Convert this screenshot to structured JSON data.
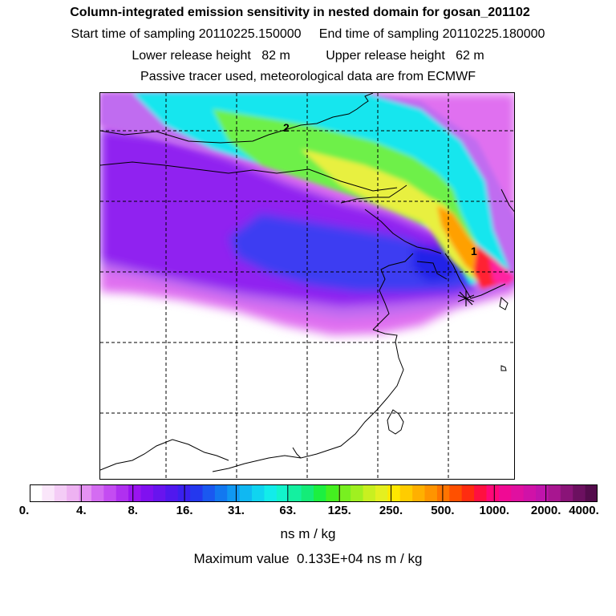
{
  "header": {
    "title": "Column-integrated emission sensitivity in nested domain for gosan_201102",
    "sampling_line": "Start time of sampling 20110225.150000     End time of sampling 20110225.180000",
    "release_line": "Lower release height   82 m          Upper release height   62 m",
    "tracer_line": "Passive tracer used, meteorological data are from ECMWF"
  },
  "map": {
    "contour_labels": [
      "2",
      "1"
    ],
    "gridlines": "dashed",
    "receptor_marker": "asterisk",
    "plume_colors": {
      "outer": "#e070f0",
      "light": "#c06cf0",
      "purple": "#9020f0",
      "blue": "#3c3cf2",
      "cyan": "#14e6ee",
      "green": "#6ef04a",
      "yellow": "#e8f040",
      "orange": "#ffa000",
      "red": "#ff2030",
      "magenta": "#ff20a0"
    }
  },
  "colorbar": {
    "tick_labels": [
      "0.",
      "4.",
      "8.",
      "16.",
      "31.",
      "63.",
      "125.",
      "250.",
      "500.",
      "1000.",
      "2000.",
      "4000."
    ],
    "colors": [
      "#ffffff",
      "#fae6fa",
      "#f4ccf6",
      "#eeb2f2",
      "#e492f2",
      "#d46cf2",
      "#c44cf2",
      "#b030f0",
      "#9a14f0",
      "#8010f0",
      "#6814ee",
      "#5018ee",
      "#3a20ee",
      "#2438ee",
      "#1a58f0",
      "#1278f0",
      "#1098f2",
      "#10b8f2",
      "#10d4f0",
      "#12ecea",
      "#12f4cc",
      "#14f0a0",
      "#14ec78",
      "#1cf040",
      "#44f020",
      "#78f020",
      "#a0f020",
      "#c8f020",
      "#e4f020",
      "#ffe800",
      "#ffcc00",
      "#ffb000",
      "#ff9400",
      "#ff7400",
      "#ff5000",
      "#ff2c10",
      "#ff1040",
      "#ff0878",
      "#f00a94",
      "#e010a0",
      "#d012a8",
      "#c014ac",
      "#a81690",
      "#8a1478",
      "#6c1060",
      "#540c4c"
    ]
  },
  "footer": {
    "units": "ns m / kg",
    "maximum": "Maximum value  0.133E+04 ns m / kg"
  }
}
